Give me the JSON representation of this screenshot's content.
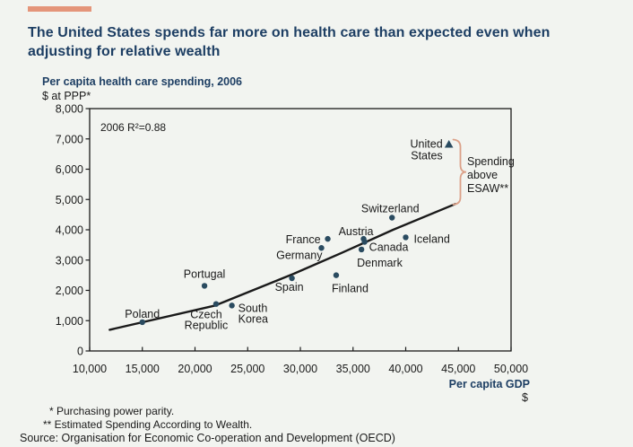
{
  "page": {
    "title": "The United States spends far more on health care than expected even when adjusting for relative wealth",
    "title_color": "#1d3e63",
    "accent_color": "#e4957a",
    "background_color": "#f2f4f0"
  },
  "chart_data": {
    "type": "scatter",
    "title": "Per capita health care spending, 2006",
    "y_axis_unit": "$ at PPP*",
    "xlabel": "Per capita GDP",
    "x_axis_unit": "$",
    "r_squared_label": "2006 R²=0.88",
    "xlim": [
      10000,
      50000
    ],
    "ylim": [
      0,
      8000
    ],
    "grid": false,
    "legend": "none",
    "marker_color": "#2a4b60",
    "trend_line_color": "#1a1a1a",
    "brace_color": "#dba189",
    "x_ticks": {
      "values": [
        10000,
        15000,
        20000,
        25000,
        30000,
        35000,
        40000,
        45000,
        50000
      ],
      "labels": [
        "10,000",
        "15,000",
        "20,000",
        "25,000",
        "30,000",
        "35,000",
        "40,000",
        "45,000",
        "50,000"
      ]
    },
    "y_ticks": {
      "values": [
        0,
        1000,
        2000,
        3000,
        4000,
        5000,
        6000,
        7000,
        8000
      ],
      "labels": [
        "0",
        "1,000",
        "2,000",
        "3,000",
        "4,000",
        "5,000",
        "6,000",
        "7,000",
        "8,000"
      ]
    },
    "points": [
      {
        "name": "Poland",
        "gdp": 15000,
        "spending": 950,
        "marker": "circle",
        "label_lines": [
          "Poland"
        ],
        "anchor": "middle",
        "dx": 0,
        "dys": [
          -5
        ]
      },
      {
        "name": "Portugal",
        "gdp": 20900,
        "spending": 2150,
        "marker": "circle",
        "label_lines": [
          "Portugal"
        ],
        "anchor": "middle",
        "dx": 0,
        "dys": [
          -9
        ]
      },
      {
        "name": "Czech Republic",
        "gdp": 22000,
        "spending": 1550,
        "marker": "circle",
        "label_lines": [
          "Czech",
          "Republic"
        ],
        "anchor": "middle",
        "dx": -11,
        "dys": [
          16,
          28
        ]
      },
      {
        "name": "South Korea",
        "gdp": 23500,
        "spending": 1500,
        "marker": "circle",
        "label_lines": [
          "South",
          "Korea"
        ],
        "anchor": "start",
        "dx": 7,
        "dys": [
          7,
          19
        ]
      },
      {
        "name": "Spain",
        "gdp": 29200,
        "spending": 2400,
        "marker": "circle",
        "label_lines": [
          "Spain"
        ],
        "anchor": "middle",
        "dx": -3,
        "dys": [
          14
        ]
      },
      {
        "name": "Germany",
        "gdp": 32000,
        "spending": 3400,
        "marker": "circle",
        "label_lines": [
          "Germany"
        ],
        "anchor": "end",
        "dx": 1,
        "dys": [
          12
        ]
      },
      {
        "name": "France",
        "gdp": 32600,
        "spending": 3700,
        "marker": "circle",
        "label_lines": [
          "France"
        ],
        "anchor": "end",
        "dx": -8,
        "dys": [
          5
        ]
      },
      {
        "name": "Finland",
        "gdp": 33400,
        "spending": 2500,
        "marker": "circle",
        "label_lines": [
          "Finland"
        ],
        "anchor": "start",
        "dx": -5,
        "dys": [
          19
        ]
      },
      {
        "name": "Denmark",
        "gdp": 35800,
        "spending": 3350,
        "marker": "circle",
        "label_lines": [
          "Denmark"
        ],
        "anchor": "start",
        "dx": -5,
        "dys": [
          19
        ]
      },
      {
        "name": "Canada",
        "gdp": 36100,
        "spending": 3600,
        "marker": "circle",
        "label_lines": [
          "Canada"
        ],
        "anchor": "start",
        "dx": 5,
        "dys": [
          10
        ]
      },
      {
        "name": "Austria",
        "gdp": 36000,
        "spending": 3700,
        "marker": "circle",
        "label_lines": [
          "Austria"
        ],
        "anchor": "end",
        "dx": 11,
        "dys": [
          -4
        ]
      },
      {
        "name": "Switzerland",
        "gdp": 38700,
        "spending": 4400,
        "marker": "circle",
        "label_lines": [
          "Switzerland"
        ],
        "anchor": "middle",
        "dx": -2,
        "dys": [
          -6
        ]
      },
      {
        "name": "Iceland",
        "gdp": 40000,
        "spending": 3750,
        "marker": "circle",
        "label_lines": [
          "Iceland"
        ],
        "anchor": "start",
        "dx": 9,
        "dys": [
          6
        ]
      },
      {
        "name": "United States",
        "gdp": 44100,
        "spending": 6800,
        "marker": "triangle",
        "label_lines": [
          "United",
          "States"
        ],
        "anchor": "end",
        "dx": -7,
        "dys": [
          3,
          16
        ]
      }
    ],
    "trend": {
      "label": "Estimated Spending According to Wealth (ESAW) trend",
      "points": [
        [
          11900,
          700
        ],
        [
          21900,
          1500
        ],
        [
          29400,
          2550
        ],
        [
          34000,
          3250
        ],
        [
          38800,
          4000
        ],
        [
          44700,
          4850
        ]
      ]
    },
    "annotation": {
      "lines": [
        "Spending",
        "above",
        "ESAW**"
      ]
    }
  },
  "footnotes": [
    "* Purchasing power parity.",
    "** Estimated Spending According to Wealth."
  ],
  "source": "Source: Organisation for Economic Co-operation and Development (OECD)"
}
